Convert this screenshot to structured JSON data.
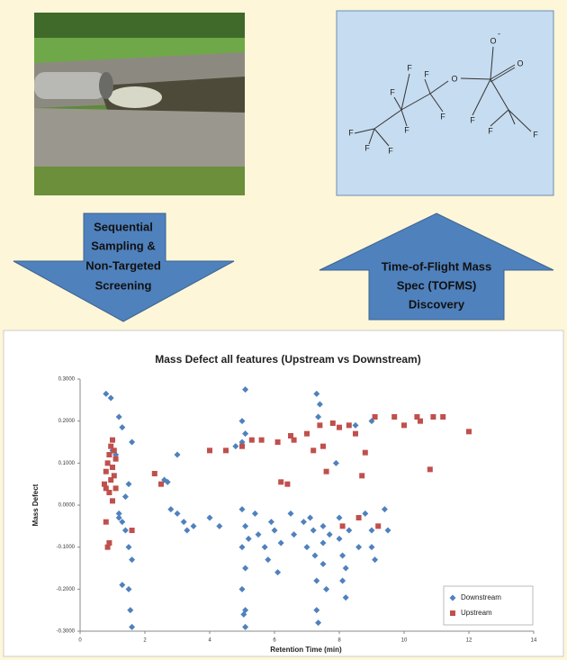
{
  "arrows": [
    {
      "lines": [
        "Sequential",
        "Sampling &",
        "Non-Targeted",
        "Screening"
      ]
    },
    {
      "lines": [
        "Time-of-Flight Mass",
        "Spec (TOFMS)",
        "Discovery"
      ]
    }
  ],
  "molecule": {
    "charge": "-",
    "atoms": [
      "O",
      "O",
      "O",
      "F",
      "F",
      "F",
      "F",
      "F",
      "F",
      "F",
      "F",
      "F",
      "F",
      "F"
    ]
  },
  "chart_data": {
    "type": "scatter",
    "title": "Mass Defect all features (Upstream vs Downstream)",
    "x_label": "Retention Time (min)",
    "y_label": "Mass Defect",
    "xlim": [
      0,
      14
    ],
    "xticks": [
      0,
      2,
      4,
      6,
      8,
      10,
      12,
      14
    ],
    "ylim": [
      -0.3,
      0.3
    ],
    "yticks": [
      {
        "value": 0.3,
        "label": "0.3000"
      },
      {
        "value": 0.2,
        "label": "0.2000"
      },
      {
        "value": 0.1,
        "label": "0.1000"
      },
      {
        "value": 0,
        "label": "0.0000"
      },
      {
        "value": -0.1,
        "label": "-0.1000"
      },
      {
        "value": -0.2,
        "label": "-0.2000"
      },
      {
        "value": -0.3,
        "label": "-0.3000"
      }
    ],
    "legend": "bottom-right",
    "series": [
      {
        "name": "Downstream",
        "color": "#4f81bd",
        "marker": "diamond",
        "x": [
          0.8,
          0.95,
          1.2,
          1.3,
          1.0,
          1.1,
          1.2,
          1.3,
          1.4,
          1.5,
          1.6,
          1.5,
          1.55,
          1.6,
          1.6,
          1.5,
          1.4,
          1.3,
          1.2,
          2.7,
          2.6,
          2.8,
          3.0,
          3.2,
          3.3,
          3.5,
          3.0,
          4.0,
          4.3,
          4.8,
          5.0,
          5.1,
          5.0,
          5.1,
          5.0,
          5.1,
          5.0,
          5.1,
          5.0,
          5.1,
          5.05,
          5.1,
          5.2,
          5.4,
          5.5,
          5.7,
          5.8,
          5.9,
          6.0,
          6.1,
          6.2,
          6.5,
          6.6,
          6.9,
          7.0,
          7.1,
          7.2,
          7.25,
          7.3,
          7.3,
          7.35,
          7.3,
          7.4,
          7.35,
          7.5,
          7.5,
          7.5,
          7.6,
          7.7,
          7.9,
          8.0,
          8.0,
          8.1,
          8.1,
          8.2,
          8.2,
          8.3,
          8.5,
          8.6,
          8.8,
          9.0,
          9.0,
          9.0,
          9.1,
          9.4,
          9.5
        ],
        "values": [
          0.265,
          0.255,
          0.21,
          0.185,
          0.13,
          0.12,
          -0.03,
          -0.04,
          -0.06,
          -0.1,
          -0.13,
          -0.2,
          -0.25,
          -0.29,
          0.15,
          0.05,
          0.02,
          -0.19,
          -0.02,
          0.055,
          0.06,
          -0.01,
          0.12,
          -0.04,
          -0.06,
          -0.05,
          -0.02,
          -0.03,
          -0.05,
          0.14,
          0.15,
          0.275,
          0.2,
          0.17,
          -0.01,
          -0.05,
          -0.1,
          -0.15,
          -0.2,
          -0.25,
          -0.26,
          -0.29,
          -0.08,
          -0.02,
          -0.07,
          -0.1,
          -0.13,
          -0.04,
          -0.06,
          -0.16,
          -0.09,
          -0.02,
          -0.07,
          -0.04,
          -0.1,
          -0.03,
          -0.06,
          -0.12,
          -0.18,
          -0.25,
          -0.28,
          0.265,
          0.24,
          0.21,
          -0.05,
          -0.09,
          -0.14,
          -0.2,
          -0.07,
          0.1,
          -0.03,
          -0.08,
          -0.12,
          -0.18,
          -0.22,
          -0.15,
          -0.06,
          0.19,
          -0.1,
          -0.02,
          0.2,
          -0.06,
          -0.1,
          -0.13,
          -0.01,
          -0.06
        ]
      },
      {
        "name": "Upstream",
        "color": "#c0504d",
        "marker": "square",
        "x": [
          0.75,
          0.8,
          0.8,
          0.85,
          0.9,
          0.95,
          1.0,
          1.05,
          1.0,
          0.95,
          0.9,
          1.0,
          1.05,
          0.8,
          0.85,
          0.9,
          1.1,
          1.1,
          1.6,
          2.3,
          2.5,
          4.0,
          4.5,
          5.0,
          5.3,
          5.6,
          6.1,
          6.2,
          6.4,
          6.5,
          6.6,
          7.0,
          7.2,
          7.4,
          7.5,
          7.6,
          7.8,
          8.0,
          8.1,
          8.3,
          8.5,
          8.6,
          8.7,
          8.8,
          9.1,
          9.2,
          9.7,
          10.0,
          10.4,
          10.5,
          10.8,
          10.9,
          11.2,
          12.0
        ],
        "values": [
          0.05,
          0.04,
          0.08,
          0.1,
          0.12,
          0.14,
          0.155,
          0.13,
          0.09,
          0.06,
          0.03,
          0.01,
          0.07,
          -0.04,
          -0.1,
          -0.09,
          0.11,
          0.04,
          -0.06,
          0.075,
          0.05,
          0.13,
          0.13,
          0.14,
          0.155,
          0.155,
          0.15,
          0.055,
          0.05,
          0.165,
          0.155,
          0.17,
          0.13,
          0.19,
          0.14,
          0.08,
          0.195,
          0.185,
          -0.05,
          0.19,
          0.17,
          -0.03,
          0.07,
          0.125,
          0.21,
          -0.05,
          0.21,
          0.19,
          0.21,
          0.2,
          0.085,
          0.21,
          0.21,
          0.175
        ]
      }
    ]
  }
}
